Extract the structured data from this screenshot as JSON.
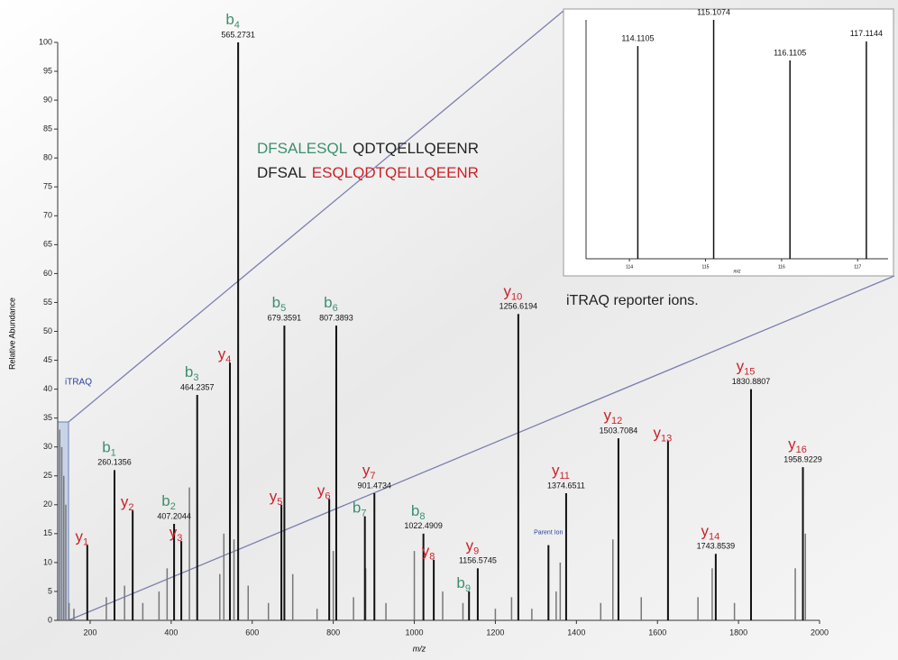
{
  "chart_data": {
    "type": "spectrum",
    "ylabel": "Relative Abundance",
    "xlabel": "m/z",
    "xlim": [
      120,
      2000
    ],
    "xticks": [
      200,
      400,
      600,
      800,
      1000,
      1200,
      1400,
      1600,
      1800,
      2000
    ],
    "ylim": [
      0,
      100
    ],
    "yticks": [
      0,
      5,
      10,
      15,
      20,
      25,
      30,
      35,
      40,
      45,
      50,
      55,
      60,
      65,
      70,
      75,
      80,
      85,
      90,
      95,
      100
    ],
    "color": "#111111",
    "minor_color": "#777777",
    "ion_colors": {
      "y": "#cc2229",
      "b": "#3d8f6e"
    },
    "sequences": [
      [
        {
          "text": "DFSALESQL",
          "color": "#3d8f6e"
        },
        {
          "text": "QDTQELLQEENR",
          "color": "#222222"
        }
      ],
      [
        {
          "text": "DFSAL",
          "color": "#222222"
        },
        {
          "text": "ESQLQDTQELLQEENR",
          "color": "#cc2229"
        }
      ]
    ],
    "itraq_label": "iTRAQ",
    "parent_label": "Parent Ion",
    "peaks": [
      {
        "x": 193,
        "value": 13,
        "ion": {
          "letter": "y",
          "sub": "1"
        }
      },
      {
        "x": 260.1356,
        "value": 26,
        "label": "260.1356",
        "ion": {
          "letter": "b",
          "sub": "1"
        }
      },
      {
        "x": 305,
        "value": 19,
        "ion": {
          "letter": "y",
          "sub": "2"
        }
      },
      {
        "x": 407.2044,
        "value": 16.7,
        "label": "407.2044",
        "ion": {
          "letter": "b",
          "sub": "2"
        }
      },
      {
        "x": 425,
        "value": 13.7,
        "ion": {
          "letter": "y",
          "sub": "3"
        }
      },
      {
        "x": 464.2357,
        "value": 39,
        "label": "464.2357",
        "ion": {
          "letter": "b",
          "sub": "3"
        }
      },
      {
        "x": 545,
        "value": 44.6,
        "ion": {
          "letter": "y",
          "sub": "4"
        }
      },
      {
        "x": 565.2731,
        "value": 100,
        "label": "565.2731",
        "ion": {
          "letter": "b",
          "sub": "4"
        }
      },
      {
        "x": 679.3591,
        "value": 51,
        "label": "679.3591",
        "ion": {
          "letter": "b",
          "sub": "5"
        }
      },
      {
        "x": 672,
        "value": 20,
        "ion": {
          "letter": "y",
          "sub": "5"
        }
      },
      {
        "x": 807.3893,
        "value": 51,
        "label": "807.3893",
        "ion": {
          "letter": "b",
          "sub": "6"
        }
      },
      {
        "x": 790,
        "value": 21,
        "ion": {
          "letter": "y",
          "sub": "6"
        }
      },
      {
        "x": 878,
        "value": 18,
        "ion": {
          "letter": "b",
          "sub": "7"
        }
      },
      {
        "x": 901.4734,
        "value": 22,
        "label": "901.4734",
        "ion": {
          "letter": "y",
          "sub": "7"
        }
      },
      {
        "x": 1022.4909,
        "value": 15,
        "label": "1022.4909",
        "ion": {
          "letter": "b",
          "sub": "8"
        }
      },
      {
        "x": 1048,
        "value": 10.5,
        "ion": {
          "letter": "y",
          "sub": "8"
        }
      },
      {
        "x": 1135,
        "value": 5,
        "ion": {
          "letter": "b",
          "sub": "9"
        }
      },
      {
        "x": 1156.5745,
        "value": 9,
        "label": "1156.5745",
        "ion": {
          "letter": "y",
          "sub": "9"
        }
      },
      {
        "x": 1256.6194,
        "value": 53,
        "label": "1256.6194",
        "ion": {
          "letter": "y",
          "sub": "10"
        }
      },
      {
        "x": 1331,
        "value": 13
      },
      {
        "x": 1374.6511,
        "value": 22,
        "label": "1374.6511",
        "ion": {
          "letter": "y",
          "sub": "11"
        }
      },
      {
        "x": 1503.7084,
        "value": 31.5,
        "label": "1503.7084",
        "ion": {
          "letter": "y",
          "sub": "12"
        }
      },
      {
        "x": 1626,
        "value": 31,
        "ion": {
          "letter": "y",
          "sub": "13"
        }
      },
      {
        "x": 1743.8539,
        "value": 11.5,
        "label": "1743.8539",
        "ion": {
          "letter": "y",
          "sub": "14"
        }
      },
      {
        "x": 1830.8807,
        "value": 40,
        "label": "1830.8807",
        "ion": {
          "letter": "y",
          "sub": "15"
        }
      },
      {
        "x": 1958.9229,
        "value": 26.5,
        "label": "1958.9229",
        "ion": {
          "letter": "y",
          "sub": "16"
        }
      }
    ],
    "minor_peaks": {
      "x": [
        125,
        130,
        135,
        140,
        148,
        160,
        240,
        285,
        330,
        370,
        390,
        445,
        520,
        530,
        555,
        590,
        640,
        700,
        760,
        800,
        850,
        880,
        930,
        1000,
        1070,
        1120,
        1200,
        1240,
        1290,
        1350,
        1360,
        1460,
        1490,
        1560,
        1700,
        1735,
        1790,
        1940,
        1965
      ],
      "values": [
        33,
        30,
        25,
        20,
        3,
        2,
        4,
        6,
        3,
        5,
        9,
        23,
        8,
        15,
        14,
        6,
        3,
        8,
        2,
        12,
        4,
        9,
        3,
        12,
        5,
        3,
        2,
        4,
        2,
        5,
        10,
        3,
        14,
        4,
        4,
        9,
        3,
        9,
        15
      ]
    },
    "inset": {
      "caption": "iTRAQ reporter ions.",
      "xlabel": "m/z",
      "xlim": [
        113.43,
        117.4
      ],
      "xticks": [
        114,
        115,
        116,
        117
      ],
      "ylim": [
        0,
        100
      ],
      "x": [
        114.1105,
        115.1074,
        116.1105,
        117.1144
      ],
      "values": [
        89,
        100,
        83,
        91
      ],
      "labels": [
        "114.1105",
        "115.1074",
        "116.1105",
        "117.1144"
      ]
    }
  }
}
